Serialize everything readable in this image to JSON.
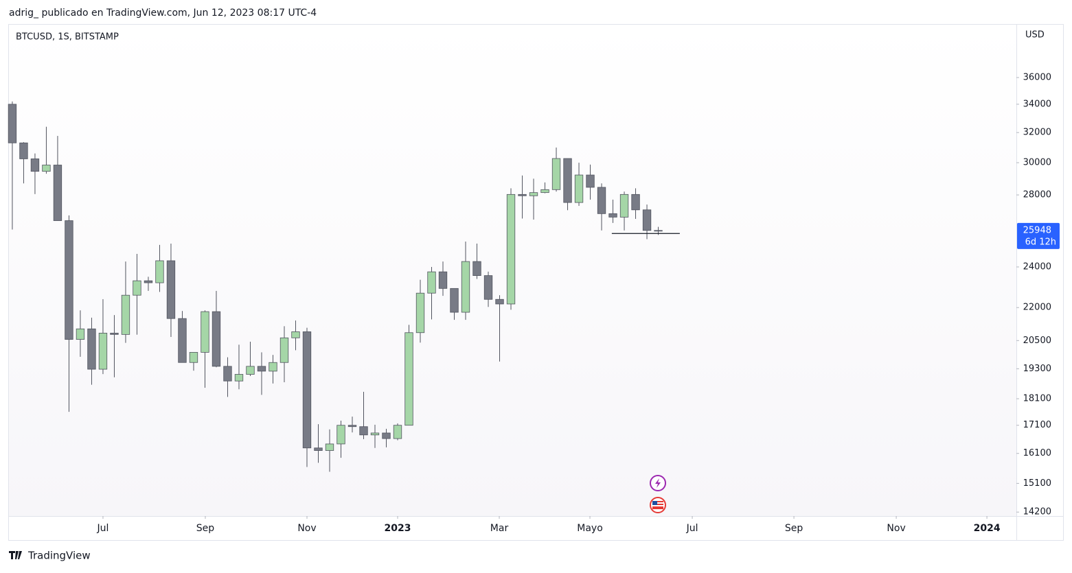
{
  "chart_data": {
    "type": "candlestick",
    "subtitle": "adrig_ publicado en TradingView.com, Jun 12, 2023 08:17 UTC-4",
    "title": "BTCUSD, 1S, BITSTAMP",
    "y_unit": "USD",
    "brand": "TradingView",
    "last_price": 25948,
    "countdown": "6d 12h",
    "log_scale": true,
    "up_color": "#a5d6a7",
    "down_color": "#787b86",
    "wick_color": "#50535e",
    "last_price_color": "#2962ff",
    "x": [
      0,
      1,
      2,
      3,
      4,
      5,
      6,
      7,
      8,
      9,
      10,
      11,
      12,
      13,
      14,
      15,
      16,
      17,
      18,
      19,
      20,
      21,
      22,
      23,
      24,
      25,
      26,
      27,
      28,
      29,
      30,
      31,
      32,
      33,
      34,
      35,
      36,
      37,
      38,
      39,
      40,
      41,
      42,
      43,
      44,
      45,
      46,
      47,
      48,
      49,
      50,
      51,
      52,
      53,
      54,
      55,
      56,
      57
    ],
    "open": [
      34000,
      31300,
      30250,
      29450,
      29850,
      26500,
      20550,
      21020,
      19280,
      20830,
      20770,
      22590,
      23300,
      23200,
      24320,
      21490,
      19560,
      19990,
      21810,
      19400,
      18800,
      19070,
      19400,
      19200,
      19560,
      20620,
      20890,
      16290,
      16200,
      16430,
      17100,
      17050,
      16750,
      16820,
      16620,
      17100,
      20850,
      22690,
      23750,
      22920,
      21780,
      24280,
      23560,
      22390,
      22170,
      28030,
      27950,
      28140,
      28320,
      30270,
      27550,
      29220,
      28460,
      26900,
      26700,
      28030,
      27120,
      25950
    ],
    "high": [
      34200,
      31350,
      30600,
      32400,
      31770,
      26800,
      21870,
      21530,
      22400,
      21650,
      24280,
      24680,
      23500,
      25160,
      25230,
      21840,
      19990,
      21870,
      22800,
      19780,
      20320,
      20450,
      19990,
      19880,
      21140,
      21400,
      21070,
      17140,
      16950,
      17270,
      17420,
      18370,
      17120,
      16970,
      17170,
      21200,
      23350,
      24000,
      24280,
      22920,
      25340,
      25230,
      23760,
      22590,
      28400,
      29190,
      28990,
      28760,
      30990,
      30270,
      30000,
      29880,
      28700,
      27720,
      28200,
      28400,
      27430,
      26150
    ],
    "low": [
      26000,
      28700,
      28050,
      29300,
      26500,
      17600,
      19800,
      18650,
      19080,
      18950,
      20400,
      20760,
      22800,
      22750,
      20660,
      19560,
      19220,
      18530,
      19360,
      18170,
      18470,
      19000,
      18250,
      18700,
      18750,
      20080,
      15640,
      15780,
      15480,
      15950,
      16840,
      16600,
      16290,
      16310,
      16560,
      17100,
      20410,
      21450,
      22560,
      21430,
      21430,
      23390,
      22030,
      19600,
      21900,
      26620,
      26560,
      28100,
      28200,
      27100,
      27350,
      27720,
      25950,
      26370,
      25950,
      26600,
      25470,
      25700
    ],
    "close": [
      31300,
      30250,
      29450,
      29850,
      26500,
      20550,
      21020,
      19280,
      20830,
      20770,
      22590,
      23300,
      23200,
      24320,
      21490,
      19560,
      19990,
      21810,
      19400,
      18800,
      19070,
      19400,
      19200,
      19560,
      20620,
      20890,
      16290,
      16200,
      16430,
      17100,
      17050,
      16750,
      16820,
      16620,
      17100,
      20850,
      22690,
      23750,
      22920,
      21780,
      24280,
      23560,
      22390,
      22170,
      28030,
      27950,
      28140,
      28320,
      30270,
      27550,
      29220,
      28460,
      26900,
      26700,
      28030,
      27120,
      25950,
      25948
    ],
    "horizontal_line": {
      "y": 25780,
      "x": [
        52.9,
        58.9
      ]
    },
    "xlim": [
      -0.36,
      88.6
    ],
    "xticks": [
      {
        "value": 8.0,
        "label": "Jul"
      },
      {
        "value": 17.03,
        "label": "Sep"
      },
      {
        "value": 26.0,
        "label": "Nov"
      },
      {
        "value": 34.0,
        "label": "2023"
      },
      {
        "value": 42.97,
        "label": "Mar"
      },
      {
        "value": 50.97,
        "label": "Mayo"
      },
      {
        "value": 60.0,
        "label": "Jul"
      },
      {
        "value": 68.97,
        "label": "Sep"
      },
      {
        "value": 78.0,
        "label": "Nov"
      },
      {
        "value": 86.0,
        "label": "2024"
      }
    ],
    "ylim": [
      14080,
      40370
    ],
    "yticks": [
      14200,
      15100,
      16100,
      17100,
      18100,
      19300,
      20500,
      22000,
      24000,
      28000,
      30000,
      32000,
      34000,
      36000
    ]
  }
}
